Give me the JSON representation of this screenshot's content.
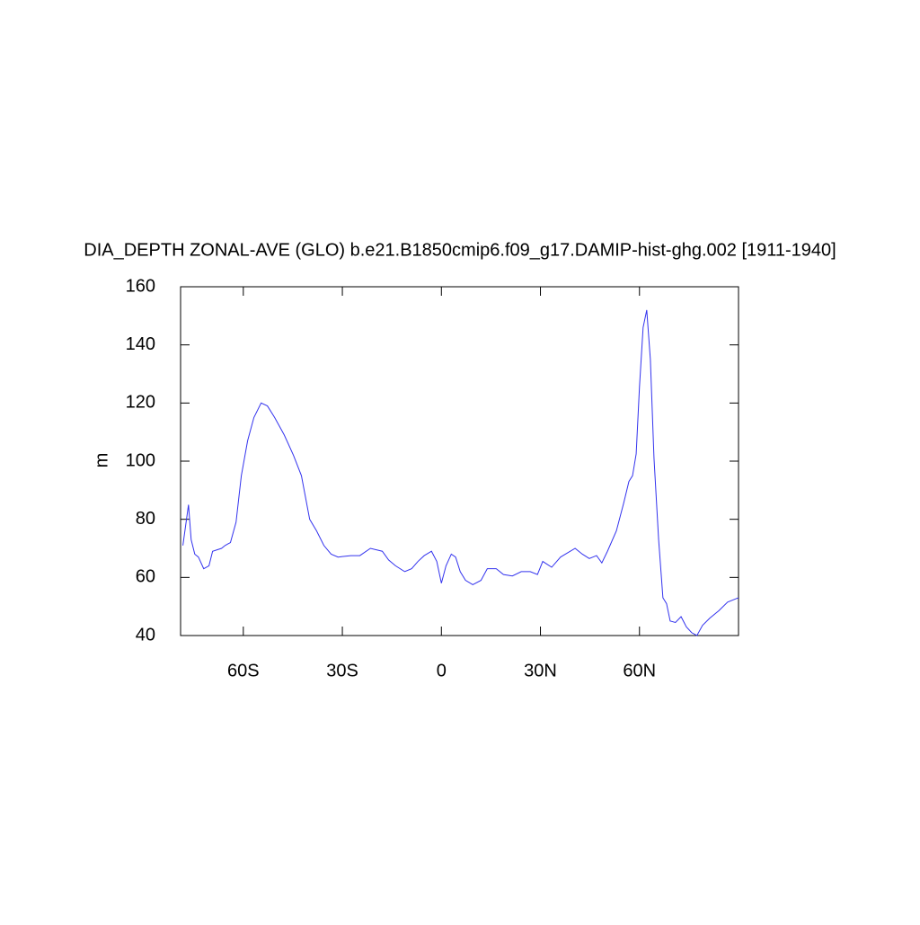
{
  "chart_data": {
    "type": "line",
    "title": "DIA_DEPTH ZONAL-AVE (GLO) b.e21.B1850cmip6.f09_g17.DAMIP-hist-ghg.002 [1911-1940]",
    "ylabel": "m",
    "xlim": [
      -79,
      90
    ],
    "ylim": [
      40,
      160
    ],
    "xticks": [
      {
        "value": -60,
        "label": "60S"
      },
      {
        "value": -30,
        "label": "30S"
      },
      0,
      {
        "value": 30,
        "label": "30N"
      },
      {
        "value": 60,
        "label": "60N"
      }
    ],
    "yticks": [
      40,
      60,
      80,
      100,
      120,
      140,
      160
    ],
    "series": [
      {
        "color": "#3333ee",
        "x": [
          -78.3,
          -76.6,
          -75.8,
          -74.7,
          -73.6,
          -72,
          -70.4,
          -69.3,
          -66.6,
          -65.5,
          -63.9,
          -62.2,
          -60.6,
          -58.7,
          -56.8,
          -54.6,
          -52.7,
          -50.5,
          -47.6,
          -44.8,
          -42.4,
          -39.9,
          -37.8,
          -35.6,
          -33.4,
          -31.3,
          -27.4,
          -24.7,
          -21.5,
          -17.9,
          -16,
          -13.9,
          -11.1,
          -9,
          -7.1,
          -5.2,
          -3,
          -1.4,
          0,
          1.4,
          3,
          4.3,
          5.7,
          7.3,
          9.5,
          12,
          13.9,
          16.6,
          18.8,
          21.5,
          24.2,
          26.9,
          29.1,
          30.7,
          33.4,
          36.1,
          38.3,
          40.5,
          42.7,
          44.8,
          47,
          48.6,
          50.3,
          53,
          55.2,
          56.8,
          57.9,
          59,
          60,
          61.1,
          62.2,
          63.3,
          64.4,
          65.8,
          67.1,
          68.2,
          69.3,
          70.9,
          72.6,
          74.2,
          75.8,
          77.4,
          79.1,
          81.3,
          84,
          86.7,
          90
        ],
        "values": [
          71,
          85,
          73,
          68,
          67,
          63,
          64,
          69,
          70,
          71,
          72,
          79,
          95,
          107,
          115,
          120,
          119,
          115,
          109,
          102,
          95,
          80,
          76,
          71,
          68,
          67,
          67.5,
          67.5,
          70,
          69,
          66,
          64,
          62,
          63,
          65.5,
          67.5,
          69,
          65.5,
          58,
          64,
          68,
          67,
          62,
          59,
          57.5,
          59,
          63,
          63,
          61,
          60.5,
          62,
          62,
          61,
          65.5,
          63.5,
          67,
          68.5,
          70,
          68,
          66.5,
          67.5,
          65,
          69,
          76,
          85.5,
          93,
          95,
          102.5,
          125.5,
          146,
          152,
          135,
          101,
          73,
          53,
          51,
          45,
          44.5,
          46.5,
          43,
          41,
          40,
          43.5,
          46,
          48.5,
          51.5,
          53
        ]
      }
    ]
  }
}
